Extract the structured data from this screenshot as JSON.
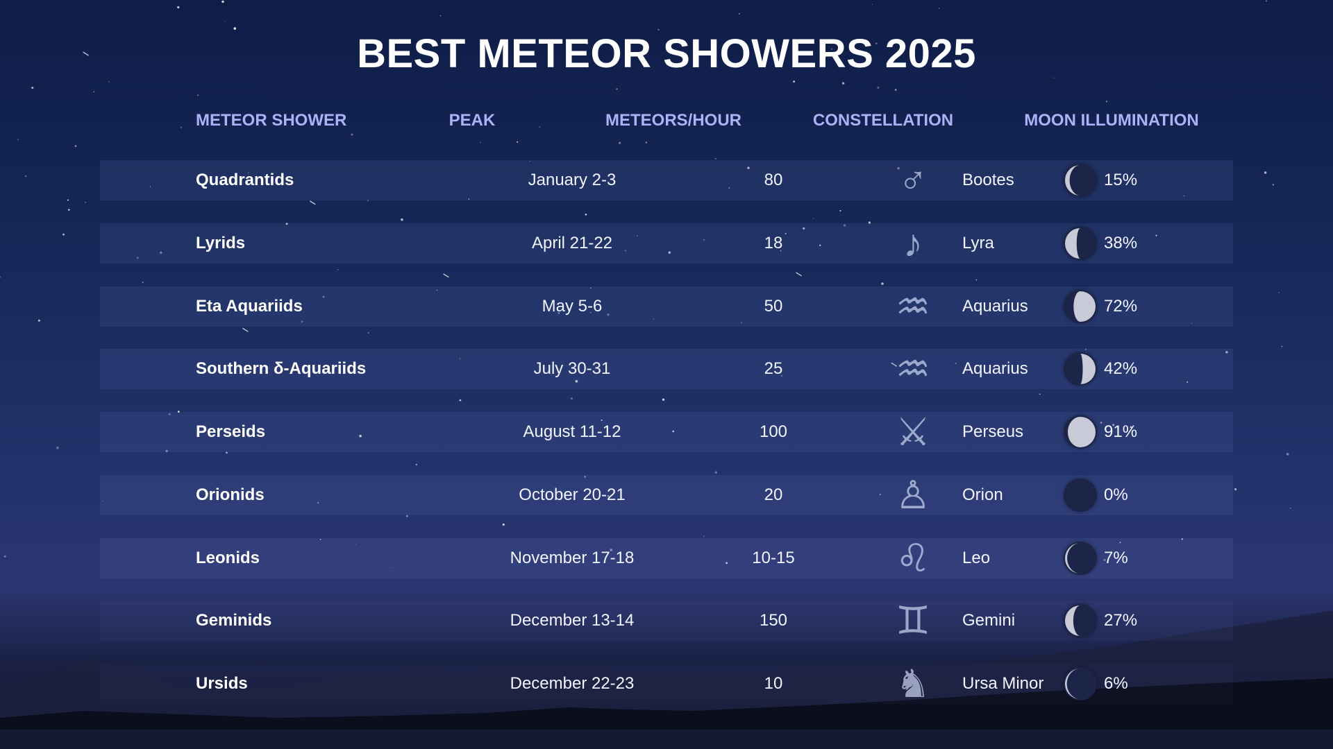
{
  "title": "BEST METEOR SHOWERS 2025",
  "headers": {
    "shower": "METEOR SHOWER",
    "peak": "PEAK",
    "rate": "METEORS/HOUR",
    "constellation": "CONSTELLATION",
    "moon": "MOON ILLUMINATION"
  },
  "colors": {
    "header_text": "#aab3f5",
    "row_band": "#7387c8",
    "moon_lit": "#d7d9e4",
    "moon_dark": "#1c2547"
  },
  "rows": [
    {
      "name": "Quadrantids",
      "peak": "January 2-3",
      "rate": "80",
      "constellation": "Bootes",
      "figure_icon": "bootes-figure-icon",
      "moon": "15%",
      "moon_fraction": 0.15,
      "moon_phase": "waning"
    },
    {
      "name": "Lyrids",
      "peak": "April 21-22",
      "rate": "18",
      "constellation": "Lyra",
      "figure_icon": "lyre-figure-icon",
      "moon": "38%",
      "moon_fraction": 0.38,
      "moon_phase": "waning"
    },
    {
      "name": "Eta Aquariids",
      "peak": "May 5-6",
      "rate": "50",
      "constellation": "Aquarius",
      "figure_icon": "aquarius-figure-icon",
      "moon": "72%",
      "moon_fraction": 0.72,
      "moon_phase": "waxing"
    },
    {
      "name": "Southern δ-Aquariids",
      "peak": "July 30-31",
      "rate": "25",
      "constellation": "Aquarius",
      "figure_icon": "aquarius-figure-icon",
      "moon": "42%",
      "moon_fraction": 0.42,
      "moon_phase": "waxing"
    },
    {
      "name": "Perseids",
      "peak": "August 11-12",
      "rate": "100",
      "constellation": "Perseus",
      "figure_icon": "perseus-figure-icon",
      "moon": "91%",
      "moon_fraction": 0.91,
      "moon_phase": "waxing"
    },
    {
      "name": "Orionids",
      "peak": "October 20-21",
      "rate": "20",
      "constellation": "Orion",
      "figure_icon": "orion-figure-icon",
      "moon": "0%",
      "moon_fraction": 0.0,
      "moon_phase": "new"
    },
    {
      "name": "Leonids",
      "peak": "November 17-18",
      "rate": "10-15",
      "constellation": "Leo",
      "figure_icon": "lion-figure-icon",
      "moon": "7%",
      "moon_fraction": 0.07,
      "moon_phase": "waning"
    },
    {
      "name": "Geminids",
      "peak": "December 13-14",
      "rate": "150",
      "constellation": "Gemini",
      "figure_icon": "gemini-figure-icon",
      "moon": "27%",
      "moon_fraction": 0.27,
      "moon_phase": "waning"
    },
    {
      "name": "Ursids",
      "peak": "December 22-23",
      "rate": "10",
      "constellation": "Ursa Minor",
      "figure_icon": "bear-figure-icon",
      "moon": "6%",
      "moon_fraction": 0.06,
      "moon_phase": "waning"
    }
  ]
}
